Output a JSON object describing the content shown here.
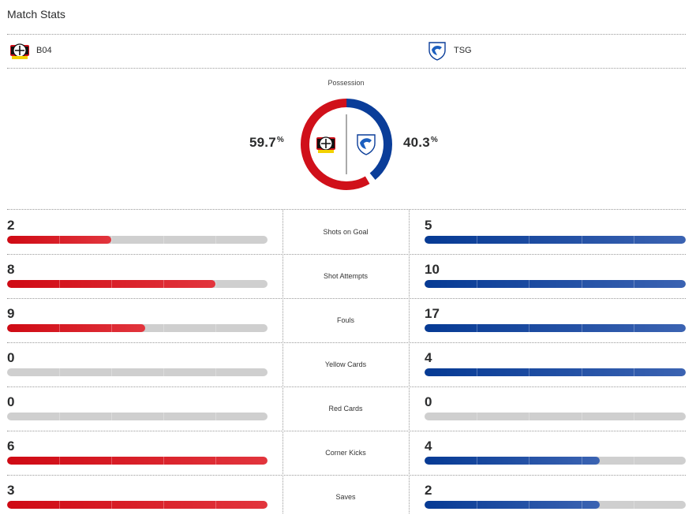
{
  "header": {
    "title": "Match Stats"
  },
  "teams": {
    "home": {
      "abbr": "B04",
      "color": "#d0101a",
      "logo_icon": "bayer-leverkusen-crest-icon"
    },
    "away": {
      "abbr": "TSG",
      "color": "#0a3d99",
      "logo_icon": "hoffenheim-crest-icon"
    }
  },
  "possession": {
    "label": "Possession",
    "home_value": "59.7",
    "away_value": "40.3",
    "unit": "%",
    "home_fraction": 0.597,
    "away_fraction": 0.403
  },
  "stats": [
    {
      "label": "Shots on Goal",
      "home": "2",
      "away": "5",
      "home_fill": 0.4,
      "away_fill": 1.0
    },
    {
      "label": "Shot Attempts",
      "home": "8",
      "away": "10",
      "home_fill": 0.8,
      "away_fill": 1.0
    },
    {
      "label": "Fouls",
      "home": "9",
      "away": "17",
      "home_fill": 0.53,
      "away_fill": 1.0
    },
    {
      "label": "Yellow Cards",
      "home": "0",
      "away": "4",
      "home_fill": 0.0,
      "away_fill": 1.0
    },
    {
      "label": "Red Cards",
      "home": "0",
      "away": "0",
      "home_fill": 0.0,
      "away_fill": 0.0
    },
    {
      "label": "Corner Kicks",
      "home": "6",
      "away": "4",
      "home_fill": 1.0,
      "away_fill": 0.67
    },
    {
      "label": "Saves",
      "home": "3",
      "away": "2",
      "home_fill": 1.0,
      "away_fill": 0.67
    }
  ]
}
